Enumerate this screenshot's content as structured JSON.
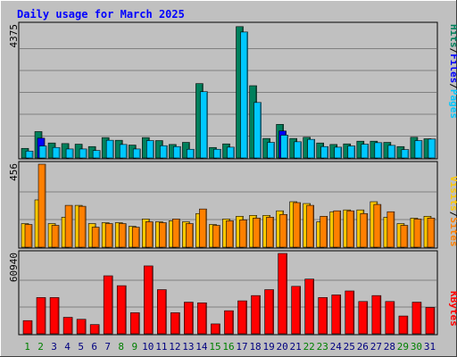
{
  "title": "Daily usage for March 2025",
  "colors": {
    "frame_bg": "#c0c0c0",
    "panel_bg": "#c0c0c0",
    "grid": "#808080",
    "title": "#0000ff",
    "hits": "#00805c",
    "files": "#0000ff",
    "pages": "#00c8ff",
    "visits": "#ffc800",
    "sites": "#ff8000",
    "kbytes": "#ff0000",
    "day_weekday": "#000080",
    "day_weekend": "#008000"
  },
  "chart_data": [
    {
      "type": "bar",
      "name": "hits-files-pages",
      "ymax_label": "4375",
      "ymax": 4375,
      "legend": [
        "Hits",
        "Files",
        "Pages"
      ],
      "categories": [
        "1",
        "2",
        "3",
        "4",
        "5",
        "6",
        "7",
        "8",
        "9",
        "10",
        "11",
        "12",
        "13",
        "14",
        "15",
        "16",
        "17",
        "18",
        "19",
        "20",
        "21",
        "22",
        "23",
        "24",
        "25",
        "26",
        "27",
        "28",
        "29",
        "30",
        "31"
      ],
      "series": [
        {
          "name": "Hits",
          "values": [
            320,
            880,
            500,
            480,
            460,
            380,
            680,
            590,
            430,
            680,
            580,
            450,
            520,
            2480,
            350,
            470,
            4380,
            2410,
            650,
            1120,
            650,
            690,
            500,
            450,
            470,
            560,
            560,
            520,
            380,
            690,
            640
          ]
        },
        {
          "name": "Files",
          "values": [
            0,
            660,
            0,
            0,
            0,
            0,
            0,
            0,
            0,
            0,
            0,
            0,
            0,
            0,
            0,
            0,
            0,
            0,
            0,
            900,
            0,
            0,
            0,
            0,
            0,
            0,
            0,
            0,
            0,
            0,
            0
          ]
        },
        {
          "name": "Pages",
          "values": [
            230,
            400,
            350,
            300,
            300,
            250,
            590,
            450,
            300,
            580,
            410,
            380,
            290,
            2210,
            290,
            360,
            4200,
            1850,
            520,
            760,
            540,
            620,
            380,
            360,
            400,
            460,
            510,
            420,
            280,
            580,
            630
          ]
        }
      ]
    },
    {
      "type": "bar",
      "name": "visits-sites",
      "ymax_label": "456",
      "ymax": 456,
      "legend": [
        "Visits",
        "Sites"
      ],
      "series": [
        {
          "name": "Visits",
          "values": [
            130,
            260,
            130,
            165,
            230,
            130,
            135,
            135,
            115,
            155,
            140,
            145,
            140,
            185,
            125,
            155,
            170,
            175,
            175,
            200,
            250,
            240,
            140,
            195,
            205,
            205,
            250,
            165,
            130,
            160,
            170
          ]
        },
        {
          "name": "Sites",
          "values": [
            125,
            456,
            120,
            230,
            225,
            110,
            130,
            130,
            110,
            140,
            135,
            155,
            130,
            210,
            120,
            145,
            150,
            160,
            165,
            180,
            245,
            230,
            170,
            200,
            200,
            185,
            235,
            195,
            120,
            155,
            160
          ]
        }
      ]
    },
    {
      "type": "bar",
      "name": "kbytes",
      "ymax_label": "60940",
      "ymax": 60940,
      "legend": [
        "KBytes"
      ],
      "series": [
        {
          "name": "KBytes",
          "values": [
            10000,
            27500,
            27500,
            12500,
            11000,
            7000,
            44000,
            36500,
            16000,
            51500,
            33500,
            16000,
            24000,
            23500,
            7500,
            17500,
            25000,
            29000,
            33500,
            60940,
            36000,
            41500,
            27500,
            29500,
            32500,
            24500,
            29000,
            24500,
            13500,
            24000,
            20000
          ]
        }
      ]
    }
  ]
}
